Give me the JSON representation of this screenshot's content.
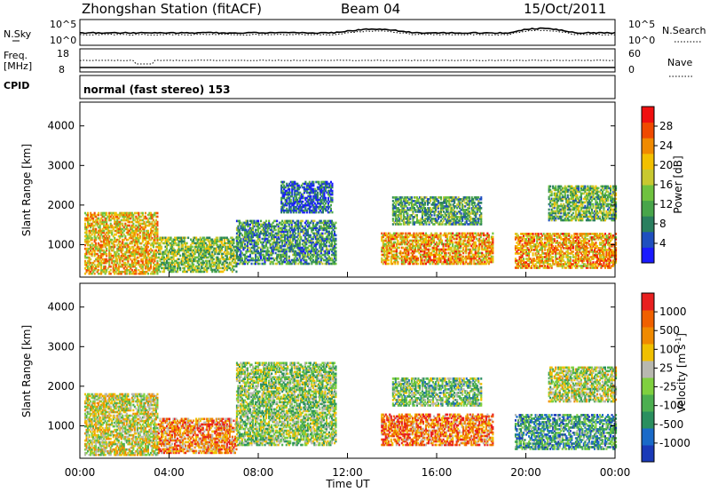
{
  "header": {
    "station": "Zhongshan Station (fitACF)",
    "beam": "Beam 04",
    "date": "15/Oct/2011"
  },
  "aux_panels": {
    "nsky_label": "N.Sky",
    "nsky_ticks": [
      "10^5",
      "10^0"
    ],
    "nsearch_label": "N.Search",
    "nsearch_ticks": [
      "10^5",
      "10^0"
    ],
    "freq_label": "Freq.",
    "freq_unit": "[MHz]",
    "freq_ticks": [
      "18",
      "8"
    ],
    "nave_label": "Nave",
    "nave_ticks": [
      "60",
      "0"
    ],
    "cpid_label": "CPID",
    "cpid_value": "normal (fast stereo) 153"
  },
  "chart_data": [
    {
      "type": "heatmap",
      "name": "power",
      "ylabel": "Slant Range [km]",
      "yticks": [
        "4000",
        "3000",
        "2000",
        "1000"
      ],
      "ylim": [
        180,
        4600
      ],
      "xlim": [
        0,
        24
      ],
      "colorbar_label": "Power [dB]",
      "colorbar_ticks": [
        "28",
        "24",
        "20",
        "16",
        "12",
        "8",
        "4"
      ],
      "colorbar_colors": [
        "#1a1aff",
        "#1f4fbf",
        "#2a7f5f",
        "#48a54a",
        "#6fc23f",
        "#c8c830",
        "#f2c000",
        "#f08a00",
        "#f04a00",
        "#f01010"
      ],
      "regions": [
        {
          "t0": 0.2,
          "t1": 3.5,
          "r0": 250,
          "r1": 1800,
          "level": 0.65
        },
        {
          "t0": 3.5,
          "t1": 7.0,
          "r0": 300,
          "r1": 1200,
          "level": 0.45
        },
        {
          "t0": 7.0,
          "t1": 11.5,
          "r0": 500,
          "r1": 1600,
          "level": 0.3
        },
        {
          "t0": 9.0,
          "t1": 11.3,
          "r0": 1800,
          "r1": 2600,
          "level": 0.2
        },
        {
          "t0": 13.5,
          "t1": 18.5,
          "r0": 500,
          "r1": 1300,
          "level": 0.7
        },
        {
          "t0": 14.0,
          "t1": 18.0,
          "r0": 1500,
          "r1": 2200,
          "level": 0.35
        },
        {
          "t0": 19.5,
          "t1": 24.0,
          "r0": 400,
          "r1": 1300,
          "level": 0.7
        },
        {
          "t0": 21.0,
          "t1": 24.0,
          "r0": 1600,
          "r1": 2500,
          "level": 0.4
        }
      ]
    },
    {
      "type": "heatmap",
      "name": "velocity",
      "ylabel": "Slant Range [km]",
      "yticks": [
        "4000",
        "3000",
        "2000",
        "1000"
      ],
      "ylim": [
        180,
        4600
      ],
      "xlim": [
        0,
        24
      ],
      "xlabel": "Time UT",
      "xticks": [
        "00:00",
        "04:00",
        "08:00",
        "12:00",
        "16:00",
        "20:00",
        "00:00"
      ],
      "colorbar_label": "Velocity [m s",
      "colorbar_exponent": "-1",
      "colorbar_ticks": [
        "1000",
        "500",
        "100",
        "25",
        "-25",
        "-100",
        "-500",
        "-1000"
      ],
      "colorbar_colors": [
        "#1a3ab8",
        "#1a6ac8",
        "#2a8f5f",
        "#4caf50",
        "#7fd03f",
        "#b8b8b0",
        "#f0c000",
        "#f08a00",
        "#f06000",
        "#e82020"
      ],
      "regions": [
        {
          "t0": 0.2,
          "t1": 3.5,
          "r0": 250,
          "r1": 1800,
          "level": 0.55
        },
        {
          "t0": 3.5,
          "t1": 7.0,
          "r0": 300,
          "r1": 1200,
          "level": 0.75
        },
        {
          "t0": 7.0,
          "t1": 11.5,
          "r0": 500,
          "r1": 2600,
          "level": 0.45
        },
        {
          "t0": 13.5,
          "t1": 18.5,
          "r0": 500,
          "r1": 1300,
          "level": 0.8
        },
        {
          "t0": 14.0,
          "t1": 18.0,
          "r0": 1500,
          "r1": 2200,
          "level": 0.4
        },
        {
          "t0": 19.5,
          "t1": 24.0,
          "r0": 400,
          "r1": 1300,
          "level": 0.3
        },
        {
          "t0": 21.0,
          "t1": 24.0,
          "r0": 1600,
          "r1": 2500,
          "level": 0.5
        }
      ]
    }
  ]
}
